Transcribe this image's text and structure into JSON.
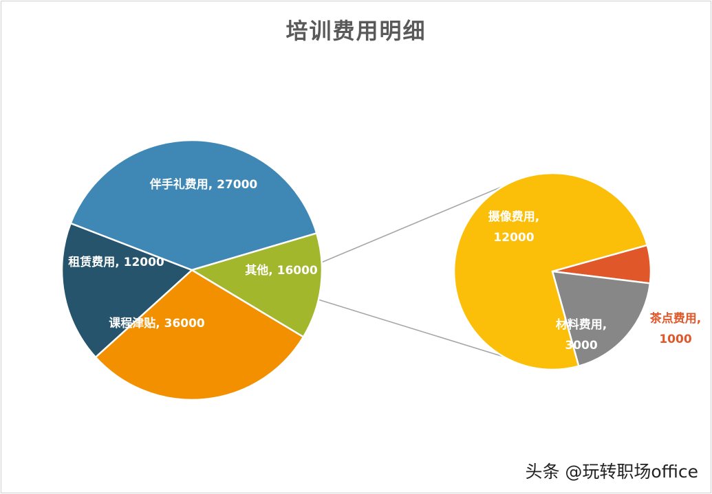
{
  "page": {
    "title": "培训费用明细",
    "watermark": "头条 @玩转职场office"
  },
  "chart_data": {
    "type": "bar-of-pie",
    "title": "培训费用明细",
    "main_pie": {
      "slices": [
        {
          "name": "伴手礼费用",
          "value": 27000,
          "label_lines": [
            "伴手礼费用, 27000"
          ],
          "color": "#F39000",
          "label_color": "#ffffff"
        },
        {
          "name": "其他",
          "value": 16000,
          "label_lines": [
            "其他, 16000"
          ],
          "color": "#27546D",
          "label_color": "#ffffff"
        },
        {
          "name": "课程津贴",
          "value": 36000,
          "label_lines": [
            "课程津贴, 36000"
          ],
          "color": "#3F88B5",
          "label_color": "#ffffff"
        },
        {
          "name": "租赁费用",
          "value": 12000,
          "label_lines": [
            "租赁费用, 12000"
          ],
          "color": "#A3B72C",
          "label_color": "#ffffff"
        }
      ]
    },
    "sub_pie": {
      "parent": "其他",
      "slices": [
        {
          "name": "茶点费用",
          "value": 1000,
          "label_lines": [
            "茶点费用,",
            "1000"
          ],
          "color": "#E0572A",
          "label_color": "#E0572A"
        },
        {
          "name": "材料费用",
          "value": 3000,
          "label_lines": [
            "材料费用,",
            "3000"
          ],
          "color": "#878787",
          "label_color": "#ffffff"
        },
        {
          "name": "摄像费用",
          "value": 12000,
          "label_lines": [
            "摄像费用,",
            "12000"
          ],
          "color": "#FCBF09",
          "label_color": "#ffffff"
        }
      ]
    },
    "legend": "none"
  }
}
